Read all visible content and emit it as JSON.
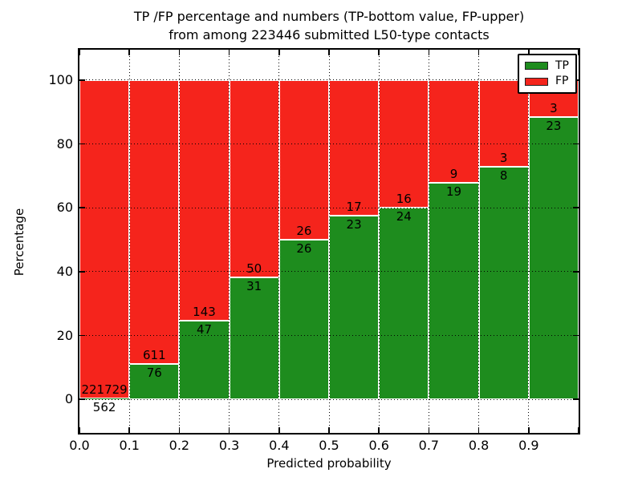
{
  "chart_data": {
    "type": "bar",
    "stacked": true,
    "title_line1": "TP /FP percentage and numbers (TP-bottom value, FP-upper)",
    "title_line2": "from among 223446 submitted L50-type contacts",
    "total_submitted_in_title": 223446,
    "xlabel": "Predicted probability",
    "ylabel": "Percentage",
    "x_tick_labels": [
      "0.0",
      "0.1",
      "0.2",
      "0.3",
      "0.4",
      "0.5",
      "0.6",
      "0.7",
      "0.8",
      "0.9"
    ],
    "y_tick_values": [
      0,
      20,
      40,
      60,
      80,
      100
    ],
    "xlim": [
      0.0,
      1.0
    ],
    "ylim": [
      -10.5,
      109.5
    ],
    "bin_width": 0.1,
    "grid_style": "dotted",
    "legend_position": "upper-right",
    "colors": {
      "tp": "#1e8c1e",
      "fp": "#f5241c",
      "bar_edge": "#ffffff"
    },
    "legend": [
      {
        "label": "TP",
        "color_key": "tp"
      },
      {
        "label": "FP",
        "color_key": "fp"
      }
    ],
    "series": [
      {
        "name": "TP",
        "counts": [
          562,
          76,
          47,
          31,
          26,
          23,
          24,
          19,
          8,
          23
        ]
      },
      {
        "name": "FP",
        "counts": [
          221729,
          611,
          143,
          50,
          26,
          17,
          16,
          9,
          3,
          3
        ]
      }
    ],
    "tp_percentages": [
      0.25,
      11.06,
      24.74,
      38.27,
      50.0,
      57.5,
      60.0,
      67.86,
      72.73,
      88.46
    ]
  }
}
